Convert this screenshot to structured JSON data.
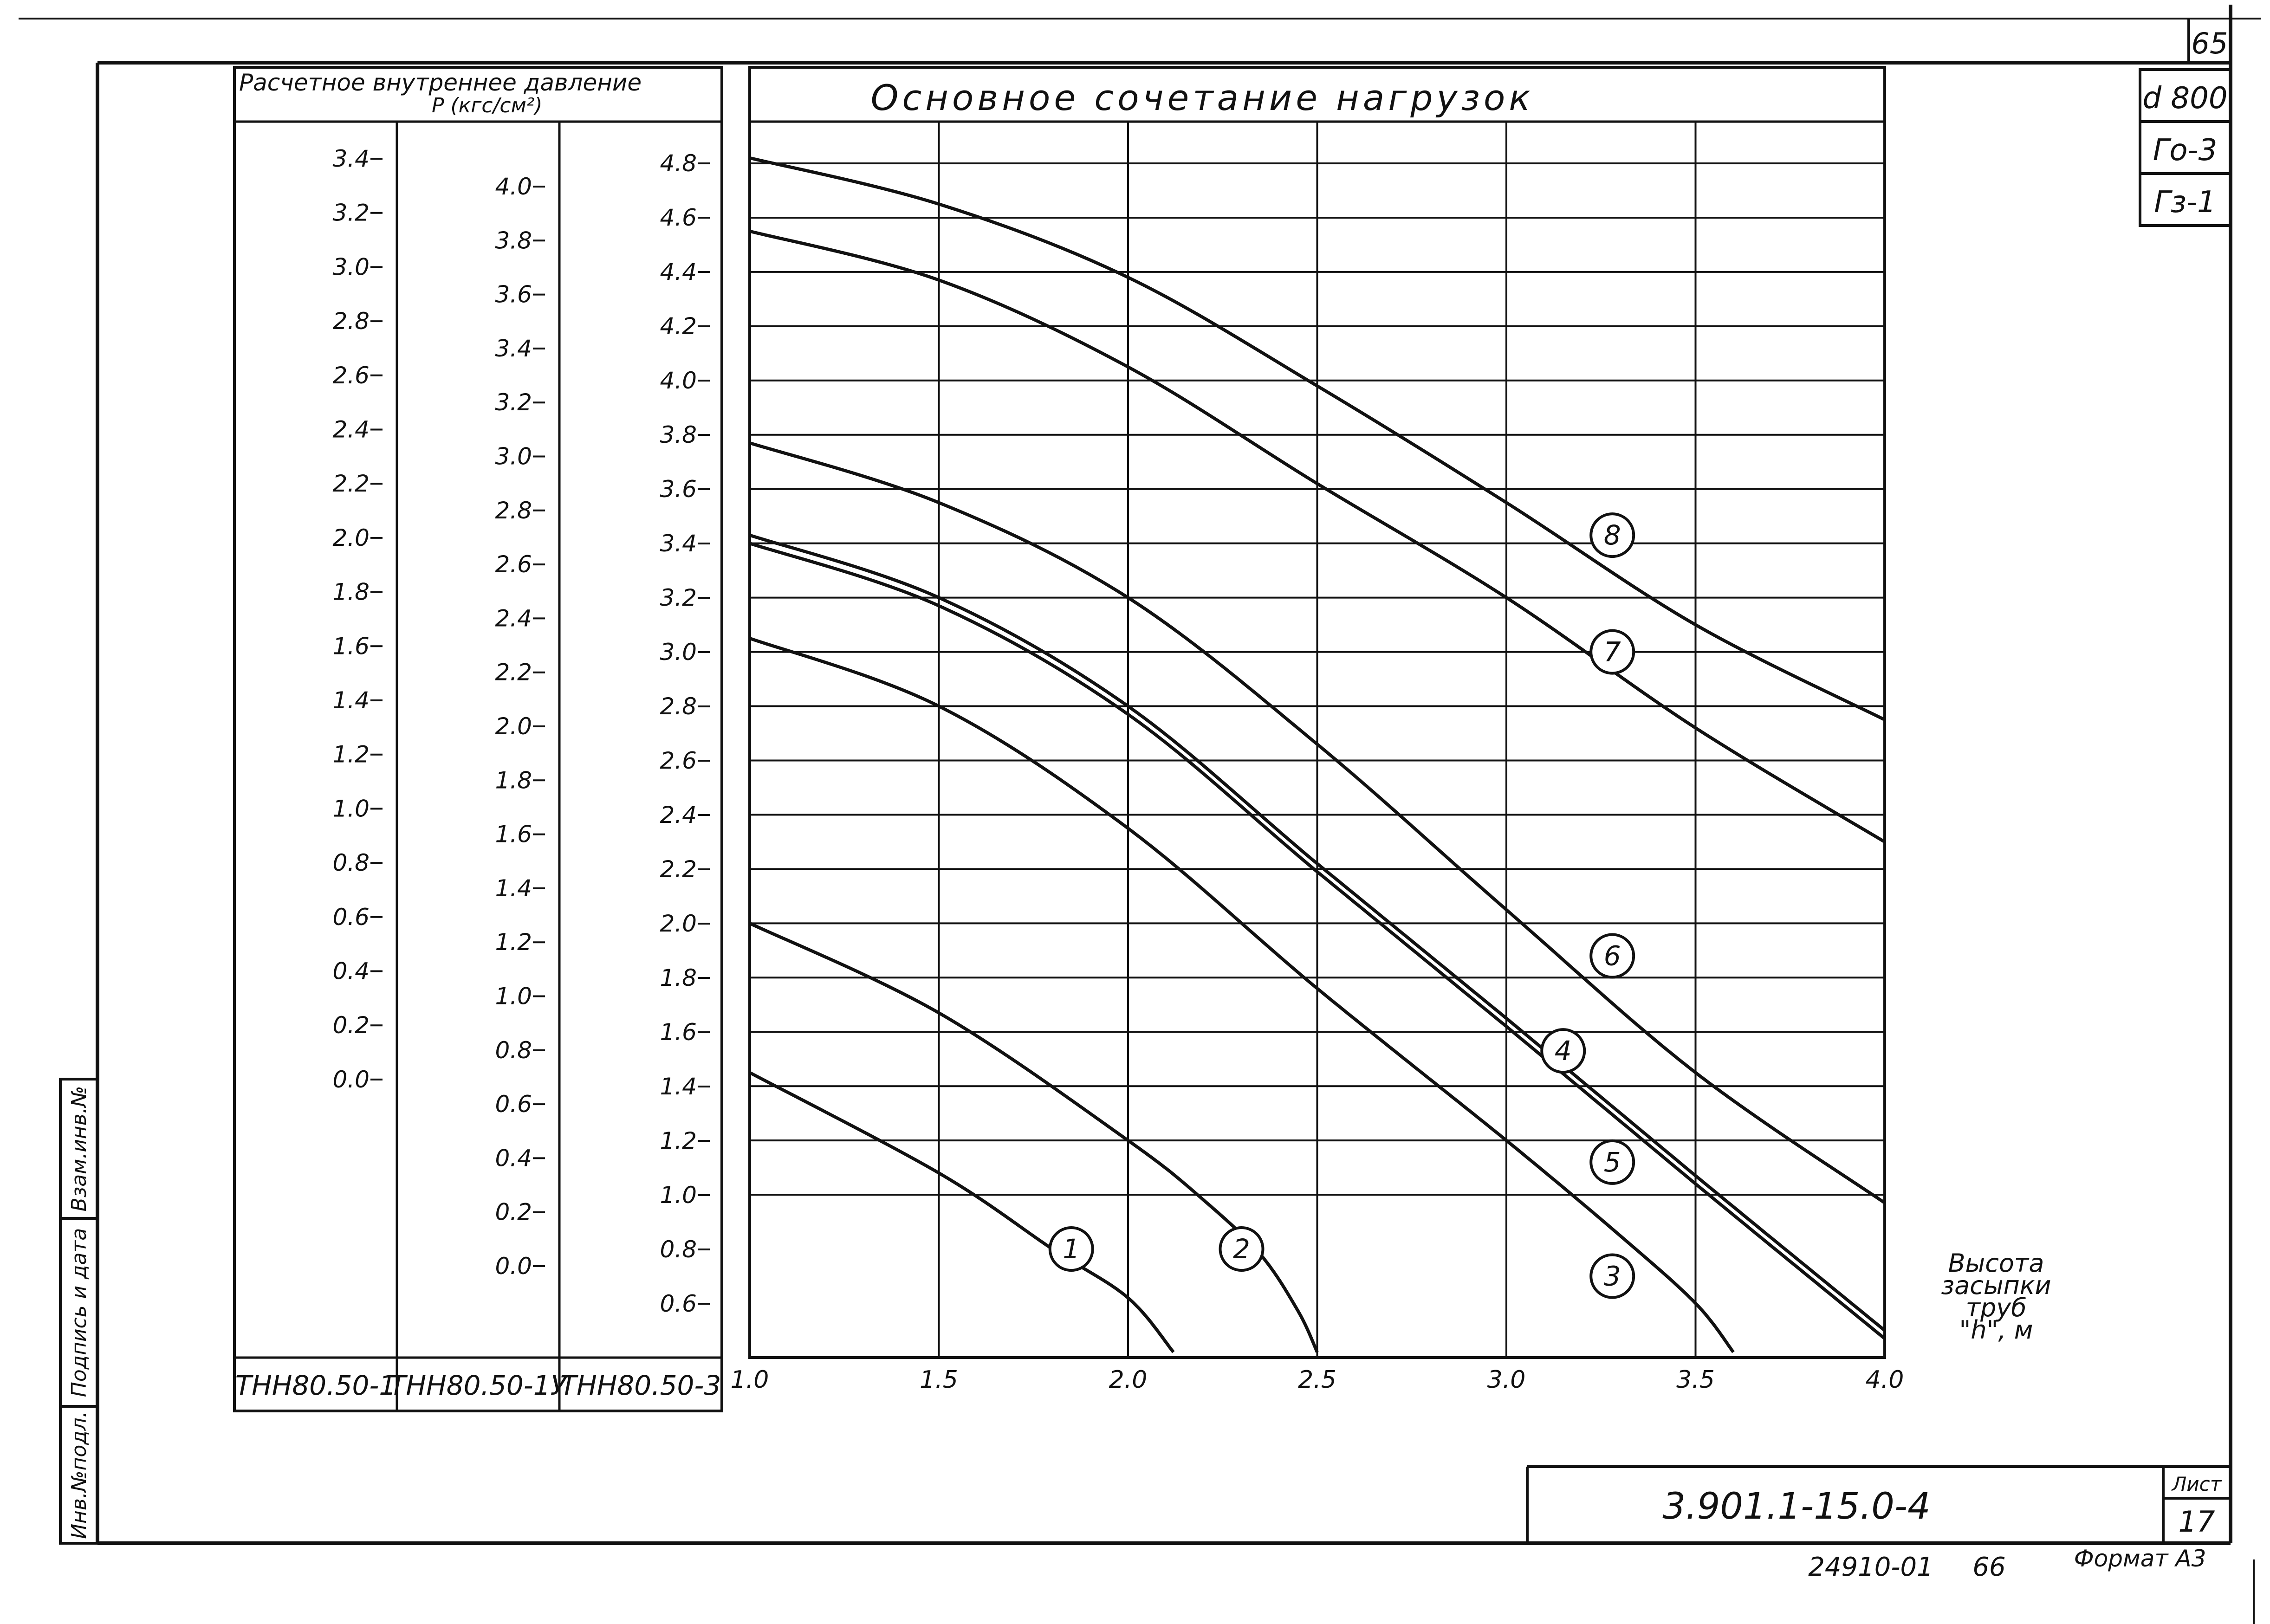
{
  "sheet": {
    "page_number_top": "65",
    "diameter_box": "d 800",
    "soil_box_1": "Го-3",
    "soil_box_2": "Гз-1",
    "left_stamp": [
      "Инв.№подл.",
      "Подпись и дата",
      "Взам.инв.№"
    ],
    "doc_code": "3.901.1-15.0-4",
    "sheet_label": "Лист",
    "sheet_number": "17",
    "bottom_stamp_code": "24910-01",
    "bottom_stamp_number": "66",
    "format_label": "Формат А3"
  },
  "pressure_table": {
    "header_line1": "Расчетное внутреннее давление",
    "header_line2": "P (кгс/см²)",
    "columns": [
      {
        "name": "ТНН80.50-1",
        "ticks": [
          "3.4",
          "3.2",
          "3.0",
          "2.8",
          "2.6",
          "2.4",
          "2.2",
          "2.0",
          "1.8",
          "1.6",
          "1.4",
          "1.2",
          "1.0",
          "0.8",
          "0.6",
          "0.4",
          "0.2",
          "0.0"
        ]
      },
      {
        "name": "ТНН80.50-1У",
        "ticks": [
          "4.0",
          "3.8",
          "3.6",
          "3.4",
          "3.2",
          "3.0",
          "2.8",
          "2.6",
          "2.4",
          "2.2",
          "2.0",
          "1.8",
          "1.6",
          "1.4",
          "1.2",
          "1.0",
          "0.8",
          "0.6",
          "0.4",
          "0.2",
          "0.0"
        ]
      },
      {
        "name": "ТНН80.50-3",
        "ticks": [
          "4.8",
          "4.6",
          "4.4",
          "4.2",
          "4.0",
          "3.8",
          "3.6",
          "3.4",
          "3.2",
          "3.0",
          "2.8",
          "2.6",
          "2.4",
          "2.2",
          "2.0",
          "1.8",
          "1.6",
          "1.4",
          "1.2",
          "1.0",
          "0.8",
          "0.6"
        ]
      }
    ]
  },
  "chart_data": {
    "type": "line",
    "title": "Основное сочетание нагрузок",
    "xlabel": "Высота засыпки труб \"h\", м",
    "ylabel": "Расчетное внутреннее давление P (кгс/см²)",
    "xlim": [
      1.0,
      4.0
    ],
    "ylim": [
      0.6,
      4.9
    ],
    "xticks": [
      "1.0",
      "1.5",
      "2.0",
      "2.5",
      "3.0",
      "3.5",
      "4.0"
    ],
    "grid": true,
    "series": [
      {
        "name": "1",
        "points": [
          [
            1.0,
            1.45
          ],
          [
            1.5,
            1.08
          ],
          [
            1.8,
            0.8
          ],
          [
            2.0,
            0.62
          ],
          [
            2.12,
            0.42
          ]
        ]
      },
      {
        "name": "2",
        "points": [
          [
            1.0,
            2.0
          ],
          [
            1.5,
            1.67
          ],
          [
            2.0,
            1.2
          ],
          [
            2.2,
            0.98
          ],
          [
            2.35,
            0.78
          ],
          [
            2.45,
            0.57
          ],
          [
            2.5,
            0.42
          ]
        ]
      },
      {
        "name": "3",
        "points": [
          [
            1.0,
            3.05
          ],
          [
            1.5,
            2.8
          ],
          [
            2.0,
            2.35
          ],
          [
            2.5,
            1.76
          ],
          [
            3.0,
            1.2
          ],
          [
            3.3,
            0.85
          ],
          [
            3.5,
            0.6
          ],
          [
            3.6,
            0.42
          ]
        ]
      },
      {
        "name": "4",
        "points": [
          [
            1.0,
            3.43
          ],
          [
            1.5,
            3.2
          ],
          [
            2.0,
            2.8
          ],
          [
            2.5,
            2.22
          ],
          [
            3.0,
            1.65
          ],
          [
            3.5,
            1.07
          ],
          [
            4.0,
            0.5
          ]
        ]
      },
      {
        "name": "5",
        "points": [
          [
            1.0,
            3.4
          ],
          [
            1.5,
            3.17
          ],
          [
            2.0,
            2.77
          ],
          [
            2.5,
            2.19
          ],
          [
            3.0,
            1.62
          ],
          [
            3.5,
            1.04
          ],
          [
            4.0,
            0.47
          ]
        ]
      },
      {
        "name": "6",
        "points": [
          [
            1.0,
            3.77
          ],
          [
            1.5,
            3.55
          ],
          [
            2.0,
            3.2
          ],
          [
            2.5,
            2.66
          ],
          [
            3.0,
            2.05
          ],
          [
            3.5,
            1.45
          ],
          [
            4.0,
            0.97
          ]
        ]
      },
      {
        "name": "7",
        "points": [
          [
            1.0,
            4.55
          ],
          [
            1.5,
            4.37
          ],
          [
            2.0,
            4.05
          ],
          [
            2.5,
            3.62
          ],
          [
            3.0,
            3.2
          ],
          [
            3.5,
            2.72
          ],
          [
            4.0,
            2.3
          ]
        ]
      },
      {
        "name": "8",
        "points": [
          [
            1.0,
            4.82
          ],
          [
            1.5,
            4.65
          ],
          [
            2.0,
            4.38
          ],
          [
            2.5,
            3.98
          ],
          [
            3.0,
            3.55
          ],
          [
            3.5,
            3.1
          ],
          [
            4.0,
            2.75
          ]
        ]
      }
    ],
    "curve_labels": [
      {
        "name": "1",
        "x": 1.85,
        "y": 0.8
      },
      {
        "name": "2",
        "x": 2.3,
        "y": 0.8
      },
      {
        "name": "3",
        "x": 3.28,
        "y": 0.7
      },
      {
        "name": "4",
        "x": 3.15,
        "y": 1.53
      },
      {
        "name": "5",
        "x": 3.28,
        "y": 1.12
      },
      {
        "name": "6",
        "x": 3.28,
        "y": 1.88
      },
      {
        "name": "7",
        "x": 3.28,
        "y": 3.0
      },
      {
        "name": "8",
        "x": 3.28,
        "y": 3.43
      }
    ]
  }
}
